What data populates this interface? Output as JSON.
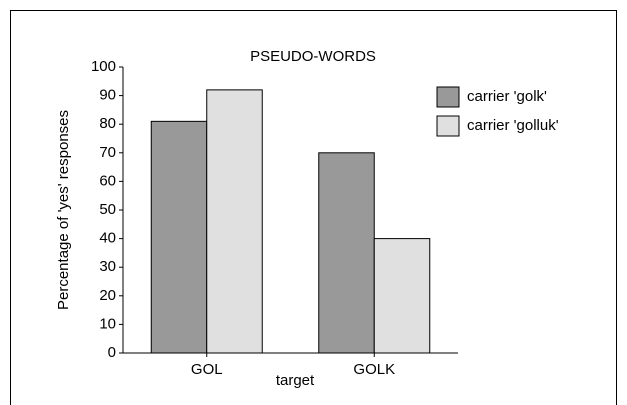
{
  "chart_data": {
    "type": "bar",
    "title": "PSEUDO-WORDS",
    "y_label": "Percentage of 'yes' responses",
    "x_label": "target",
    "categories": [
      "GOL",
      "GOLK"
    ],
    "series": [
      {
        "name": "carrier 'golk'",
        "color": "#999999",
        "values": [
          81,
          70
        ]
      },
      {
        "name": "carrier 'golluk'",
        "color": "#e0e0e0",
        "values": [
          92,
          40
        ]
      }
    ],
    "ylim": [
      0,
      100
    ],
    "yticks": [
      0,
      10,
      20,
      30,
      40,
      50,
      60,
      70,
      80,
      90,
      100
    ],
    "legend": "right"
  }
}
